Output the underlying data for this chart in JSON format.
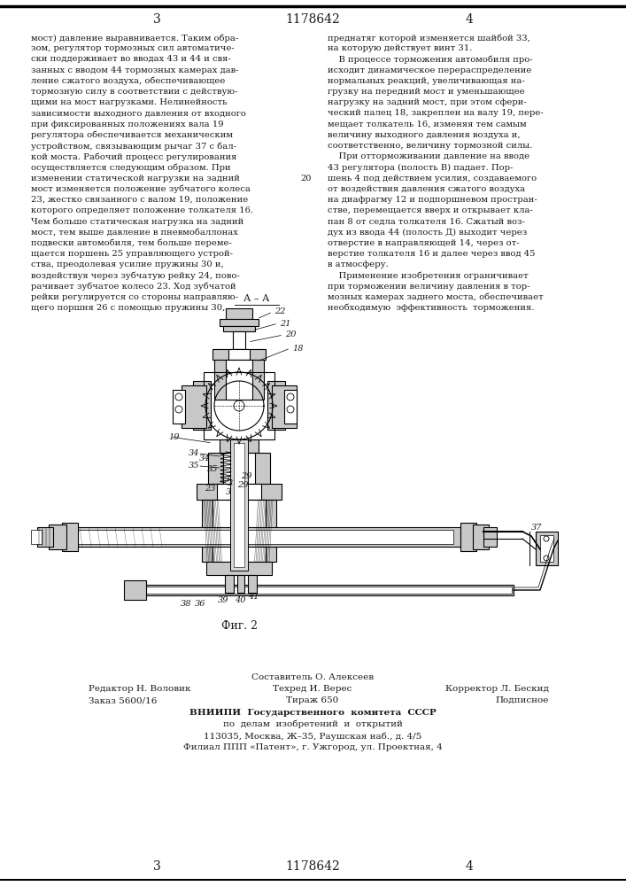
{
  "page_number_left": "3",
  "page_number_center": "1178642",
  "page_number_right": "4",
  "col_left_text": [
    "мост) давление выравнивается. Таким обра-",
    "зом, регулятор тормозных сил автоматиче-",
    "ски поддерживает во вводах 43 и 44 и свя-",
    "занных с вводом 44 тормозных камерах дав-",
    "ление сжатого воздуха, обеспечивающее",
    "тормозную силу в соответствии с действую-",
    "щими на мост нагрузками. Нелинейность",
    "зависимости выходного давления от входного",
    "при фиксированных положениях вала 19",
    "регулятора обеспечивается механическим",
    "устройством, связывающим рычаг 37 с бал-",
    "кой моста. Рабочий процесс регулирования",
    "осуществляется следующим образом. При",
    "изменении статической нагрузки на задний",
    "мост изменяется положение зубчатого колеса",
    "23, жестко связанного с валом 19, положение",
    "которого определяет положение толкателя 16.",
    "Чем больше статическая нагрузка на задний",
    "мост, тем выше давление в пневмобаллонах",
    "подвески автомобиля, тем больше переме-",
    "щается поршень 25 управляющего устрой-",
    "ства, преодолевая усилие пружины 30 и,",
    "воздействуя через зубчатую рейку 24, пово-",
    "рачивает зубчатое колесо 23. Ход зубчатой",
    "рейки регулируется со стороны направляю-",
    "щего поршня 26 с помощью пружины 30,"
  ],
  "col_right_text": [
    "преднатяг которой изменяется шайбой 33,",
    "на которую действует винт 31.",
    "    В процессе торможения автомобиля про-",
    "исходит динамическое перераспределение",
    "нормальных реакций, увеличивающая на-",
    "грузку на передний мост и уменьшающее",
    "нагрузку на задний мост, при этом сфери-",
    "ческий палец 18, закреплен на валу 19, пере-",
    "мещает толкатель 16, изменяя тем самым",
    "величину выходного давления воздуха и,",
    "соответственно, величину тормозной силы.",
    "    При отторможивании давление на вводе",
    "43 регулятора (полость В) падает. Пор-",
    "шень 4 под действием усилия, создаваемого",
    "от воздействия давления сжатого воздуха",
    "на диафрагму 12 и подпоршневом простран-",
    "стве, перемещается вверх и открывает кла-",
    "пан 8 от седла толкателя 16. Сжатый воз-",
    "дух из ввода 44 (полость Д) выходит через",
    "отверстие в направляющей 14, через от-",
    "верстие толкателя 16 и далее через ввод 45",
    "в атмосферу.",
    "    Применение изобретения ограничивает",
    "при торможении величину давления в тор-",
    "мозных камерах заднего моста, обеспечивает",
    "необходимую  эффективность  торможения."
  ],
  "line_number_right": "20",
  "fig_label": "Фиг. 2",
  "footer_sestavitel": "Составитель О. Алексеев",
  "footer_redaktor": "Редактор Н. Воловик",
  "footer_tehred": "Техред И. Верес",
  "footer_korrektor": "Корректор Л. Бескид",
  "footer_zakaz": "Заказ 5600/16",
  "footer_tirazh": "Тираж 650",
  "footer_podpisnoe": "Подписное",
  "footer_vniipи": "ВНИИПИ  Государственного  комитета  СССР",
  "footer_delam": "по  делам  изобретений  и  открытий",
  "footer_adres": "113035, Москва, Ж–35, Раушская наб., д. 4/5",
  "footer_filial": "Филиал ППП «Патент», г. Ужгород, ул. Проектная, 4",
  "bg_color": "#ffffff",
  "text_color": "#1a1a1a",
  "border_color": "#000000"
}
